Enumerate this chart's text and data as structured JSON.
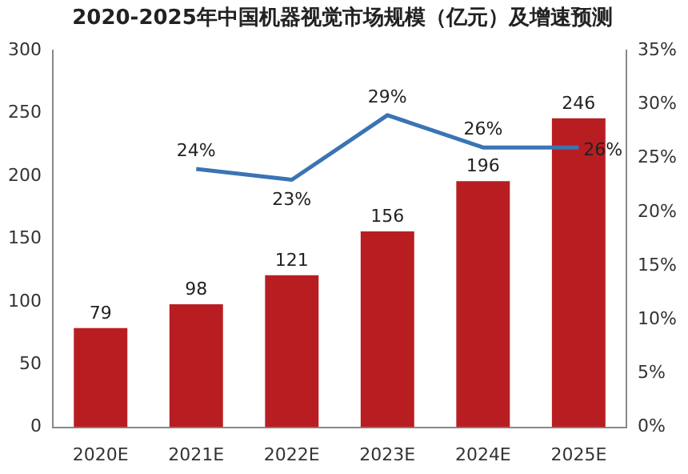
{
  "chart_data": {
    "type": "bar",
    "title": "2020-2025年中国机器视觉市场规模（亿元）及增速预测",
    "categories": [
      "2020E",
      "2021E",
      "2022E",
      "2023E",
      "2024E",
      "2025E"
    ],
    "series": [
      {
        "color": "#b81d22",
        "values": [
          79,
          98,
          121,
          156,
          196,
          246
        ]
      },
      {
        "type": "line",
        "axis": "y2",
        "color": "#3a74b4",
        "values": [
          null,
          24,
          23,
          29,
          26,
          26
        ],
        "value_labels": [
          null,
          "24%",
          "23%",
          "29%",
          "26%",
          "26%"
        ]
      }
    ],
    "ylim": [
      0,
      300
    ],
    "yticks": [
      0,
      50,
      100,
      150,
      200,
      250,
      300
    ],
    "y2lim": [
      0,
      35
    ],
    "y2ticks": [
      {
        "value": 0,
        "label": "0%"
      },
      {
        "value": 5,
        "label": "5%"
      },
      {
        "value": 10,
        "label": "10%"
      },
      {
        "value": 15,
        "label": "15%"
      },
      {
        "value": 20,
        "label": "20%"
      },
      {
        "value": 25,
        "label": "25%"
      },
      {
        "value": 30,
        "label": "30%"
      },
      {
        "value": 35,
        "label": "35%"
      }
    ],
    "data_labels": true,
    "grid": false,
    "legend": false,
    "marker": "none"
  }
}
